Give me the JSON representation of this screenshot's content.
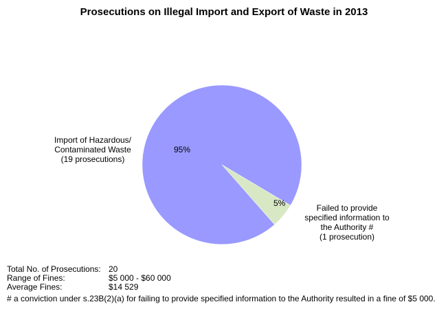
{
  "chart_data": {
    "type": "pie",
    "title": "Prosecutions on Illegal Import and Export of Waste in 2013",
    "slices": [
      {
        "label_lines": [
          "Import of Hazardous/",
          "Contaminated Waste",
          "(19 prosecutions)"
        ],
        "value": 19,
        "percent_label": "95%",
        "color": "#9999ff"
      },
      {
        "label_lines": [
          "Failed to provide",
          "specified information to",
          "the Authority #",
          "(1 prosecution)"
        ],
        "value": 1,
        "percent_label": "5%",
        "color": "#d9e8c4"
      }
    ]
  },
  "summary": [
    {
      "key": "Total No. of Prosecutions:",
      "value": "20"
    },
    {
      "key": "Range of Fines:",
      "value": "$5 000 - $60 000"
    },
    {
      "key": "Average Fines:",
      "value": "$14 529"
    }
  ],
  "footnote": "# a conviction under s.23B(2)(a) for failing to provide specified information to the Authority resulted in a fine of $5 000."
}
